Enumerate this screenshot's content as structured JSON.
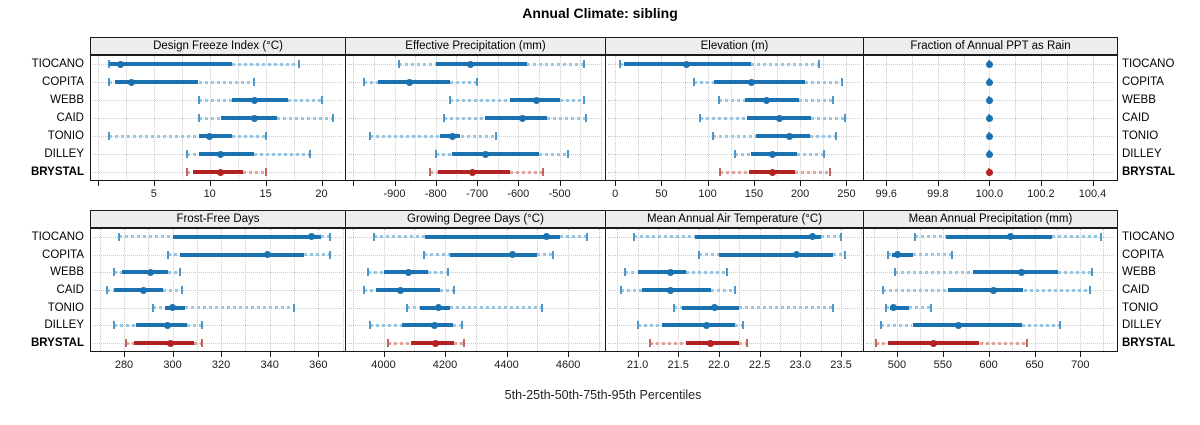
{
  "title": "Annual Climate: sibling",
  "caption": "5th-25th-50th-75th-95th Percentiles",
  "sites": [
    "TIOCANO",
    "COPITA",
    "WEBB",
    "CAID",
    "TONIO",
    "DILLEY",
    "BRYSTAL"
  ],
  "highlight_site": "BRYSTAL",
  "colors": {
    "blue_dark": "#1B72B0",
    "blue_light": "#9AC6E0",
    "blue_cap": "#4E98C9",
    "red_dark": "#B22222",
    "red_light": "#DEA69F",
    "red_cap": "#C2655E",
    "strip_bg": "#EDEDED",
    "panel_border": "#1A1A1A",
    "grid": "#CDCDCD"
  },
  "chart_data": {
    "type": "dot-whisker-percentile-panels",
    "percentiles": [
      "5th",
      "25th",
      "50th",
      "75th",
      "95th"
    ],
    "layout": "2 rows x 4 columns, shared site rows, BRYSTAL highlighted in red",
    "panels": [
      {
        "title": "Design Freeze Index (°C)",
        "domain": [
          -0.7,
          22.1
        ],
        "tick_values": [
          0,
          5,
          10,
          15,
          20
        ],
        "tick_labels": [
          "",
          "5",
          "10",
          "15",
          "20"
        ],
        "series": {
          "TIOCANO": [
            1,
            1,
            2,
            12,
            18
          ],
          "COPITA": [
            1,
            1.5,
            3,
            9,
            14
          ],
          "WEBB": [
            9,
            12,
            14,
            17,
            20
          ],
          "CAID": [
            9,
            11,
            14,
            16,
            21
          ],
          "TONIO": [
            1,
            9,
            10,
            12,
            15
          ],
          "DILLEY": [
            8,
            9,
            11,
            14,
            19
          ],
          "BRYSTAL": [
            8,
            8.5,
            11,
            13,
            15
          ]
        }
      },
      {
        "title": "Effective Precipitation (mm)",
        "domain": [
          -1020,
          -390
        ],
        "tick_values": [
          -1000,
          -900,
          -800,
          -700,
          -600,
          -500
        ],
        "tick_labels": [
          "",
          "-900",
          "-800",
          "-700",
          "-600",
          "-500"
        ],
        "series": {
          "TIOCANO": [
            -890,
            -800,
            -715,
            -580,
            -440
          ],
          "COPITA": [
            -975,
            -940,
            -865,
            -765,
            -700
          ],
          "WEBB": [
            -765,
            -620,
            -555,
            -500,
            -440
          ],
          "CAID": [
            -780,
            -680,
            -590,
            -530,
            -435
          ],
          "TONIO": [
            -960,
            -790,
            -760,
            -740,
            -655
          ],
          "DILLEY": [
            -800,
            -760,
            -680,
            -550,
            -480
          ],
          "BRYSTAL": [
            -815,
            -795,
            -710,
            -620,
            -540
          ]
        }
      },
      {
        "title": "Elevation (m)",
        "domain": [
          -11,
          268
        ],
        "tick_values": [
          0,
          50,
          100,
          150,
          200,
          250
        ],
        "tick_labels": [
          "0",
          "50",
          "100",
          "150",
          "200",
          "250"
        ],
        "series": {
          "TIOCANO": [
            5,
            9,
            77,
            147,
            220
          ],
          "COPITA": [
            85,
            107,
            147,
            205,
            245
          ],
          "WEBB": [
            112,
            140,
            164,
            199,
            236
          ],
          "CAID": [
            92,
            143,
            178,
            212,
            248
          ],
          "TONIO": [
            106,
            152,
            188,
            211,
            239
          ],
          "DILLEY": [
            129,
            147,
            170,
            197,
            226
          ],
          "BRYSTAL": [
            113,
            145,
            170,
            194,
            232
          ]
        }
      },
      {
        "title": "Fraction of Annual PPT as Rain",
        "domain": [
          99.51,
          100.495
        ],
        "tick_values": [
          99.6,
          99.8,
          100.0,
          100.2,
          100.4
        ],
        "tick_labels": [
          "99.6",
          "99.8",
          "100.0",
          "100.2",
          "100.4"
        ],
        "series": {
          "TIOCANO": [
            100,
            100,
            100,
            100,
            100
          ],
          "COPITA": [
            100,
            100,
            100,
            100,
            100
          ],
          "WEBB": [
            100,
            100,
            100,
            100,
            100
          ],
          "CAID": [
            100,
            100,
            100,
            100,
            100
          ],
          "TONIO": [
            100,
            100,
            100,
            100,
            100
          ],
          "DILLEY": [
            100,
            100,
            100,
            100,
            100
          ],
          "BRYSTAL": [
            100,
            100,
            100,
            100,
            100
          ]
        }
      },
      {
        "title": "Frost-Free Days",
        "domain": [
          266,
          371
        ],
        "tick_values": [
          280,
          300,
          320,
          340,
          360
        ],
        "tick_labels": [
          "280",
          "300",
          "320",
          "340",
          "360"
        ],
        "series": {
          "TIOCANO": [
            278,
            300,
            357,
            361,
            365
          ],
          "COPITA": [
            298,
            303,
            339,
            354,
            365
          ],
          "WEBB": [
            276,
            279,
            291,
            298,
            303
          ],
          "CAID": [
            273,
            276,
            288,
            296,
            304
          ],
          "TONIO": [
            292,
            297,
            300,
            305,
            350
          ],
          "DILLEY": [
            276,
            285,
            298,
            306,
            312
          ],
          "BRYSTAL": [
            281,
            284,
            299,
            309,
            312
          ]
        }
      },
      {
        "title": "Growing Degree Days (°C)",
        "domain": [
          3875,
          4720
        ],
        "tick_values": [
          4000,
          4200,
          4400,
          4600
        ],
        "tick_labels": [
          "4000",
          "4200",
          "4400",
          "4600"
        ],
        "series": {
          "TIOCANO": [
            3970,
            4135,
            4530,
            4575,
            4660
          ],
          "COPITA": [
            4130,
            4215,
            4420,
            4500,
            4550
          ],
          "WEBB": [
            3950,
            4000,
            4080,
            4145,
            4210
          ],
          "CAID": [
            3935,
            3975,
            4055,
            4185,
            4230
          ],
          "TONIO": [
            4075,
            4120,
            4180,
            4215,
            4515
          ],
          "DILLEY": [
            3955,
            4060,
            4165,
            4225,
            4255
          ],
          "BRYSTAL": [
            4015,
            4090,
            4170,
            4230,
            4260
          ]
        }
      },
      {
        "title": "Mean Annual Air Temperature (°C)",
        "domain": [
          20.6,
          23.77
        ],
        "tick_values": [
          21.0,
          21.5,
          22.0,
          22.5,
          23.0,
          23.5
        ],
        "tick_labels": [
          "21.0",
          "21.5",
          "22.0",
          "22.5",
          "23.0",
          "23.5"
        ],
        "series": {
          "TIOCANO": [
            20.95,
            21.7,
            23.15,
            23.25,
            23.5
          ],
          "COPITA": [
            21.75,
            22.0,
            22.95,
            23.4,
            23.55
          ],
          "WEBB": [
            20.85,
            21.0,
            21.4,
            21.6,
            22.1
          ],
          "CAID": [
            20.8,
            21.05,
            21.4,
            21.9,
            22.2
          ],
          "TONIO": [
            21.45,
            21.55,
            21.95,
            22.25,
            23.4
          ],
          "DILLEY": [
            21.0,
            21.3,
            21.85,
            22.2,
            22.3
          ],
          "BRYSTAL": [
            21.15,
            21.6,
            21.9,
            22.25,
            22.35
          ]
        }
      },
      {
        "title": "Mean Annual Precipitation (mm)",
        "domain": [
          463,
          740
        ],
        "tick_values": [
          500,
          550,
          600,
          650,
          700
        ],
        "tick_labels": [
          "500",
          "550",
          "600",
          "650",
          "700"
        ],
        "series": {
          "TIOCANO": [
            520,
            553,
            624,
            669,
            722
          ],
          "COPITA": [
            490,
            495,
            501,
            518,
            560
          ],
          "WEBB": [
            498,
            583,
            636,
            676,
            713
          ],
          "CAID": [
            485,
            556,
            605,
            638,
            710
          ],
          "TONIO": [
            488,
            492,
            496,
            513,
            537
          ],
          "DILLEY": [
            483,
            517,
            567,
            636,
            678
          ],
          "BRYSTAL": [
            477,
            490,
            540,
            590,
            642
          ]
        }
      }
    ]
  }
}
